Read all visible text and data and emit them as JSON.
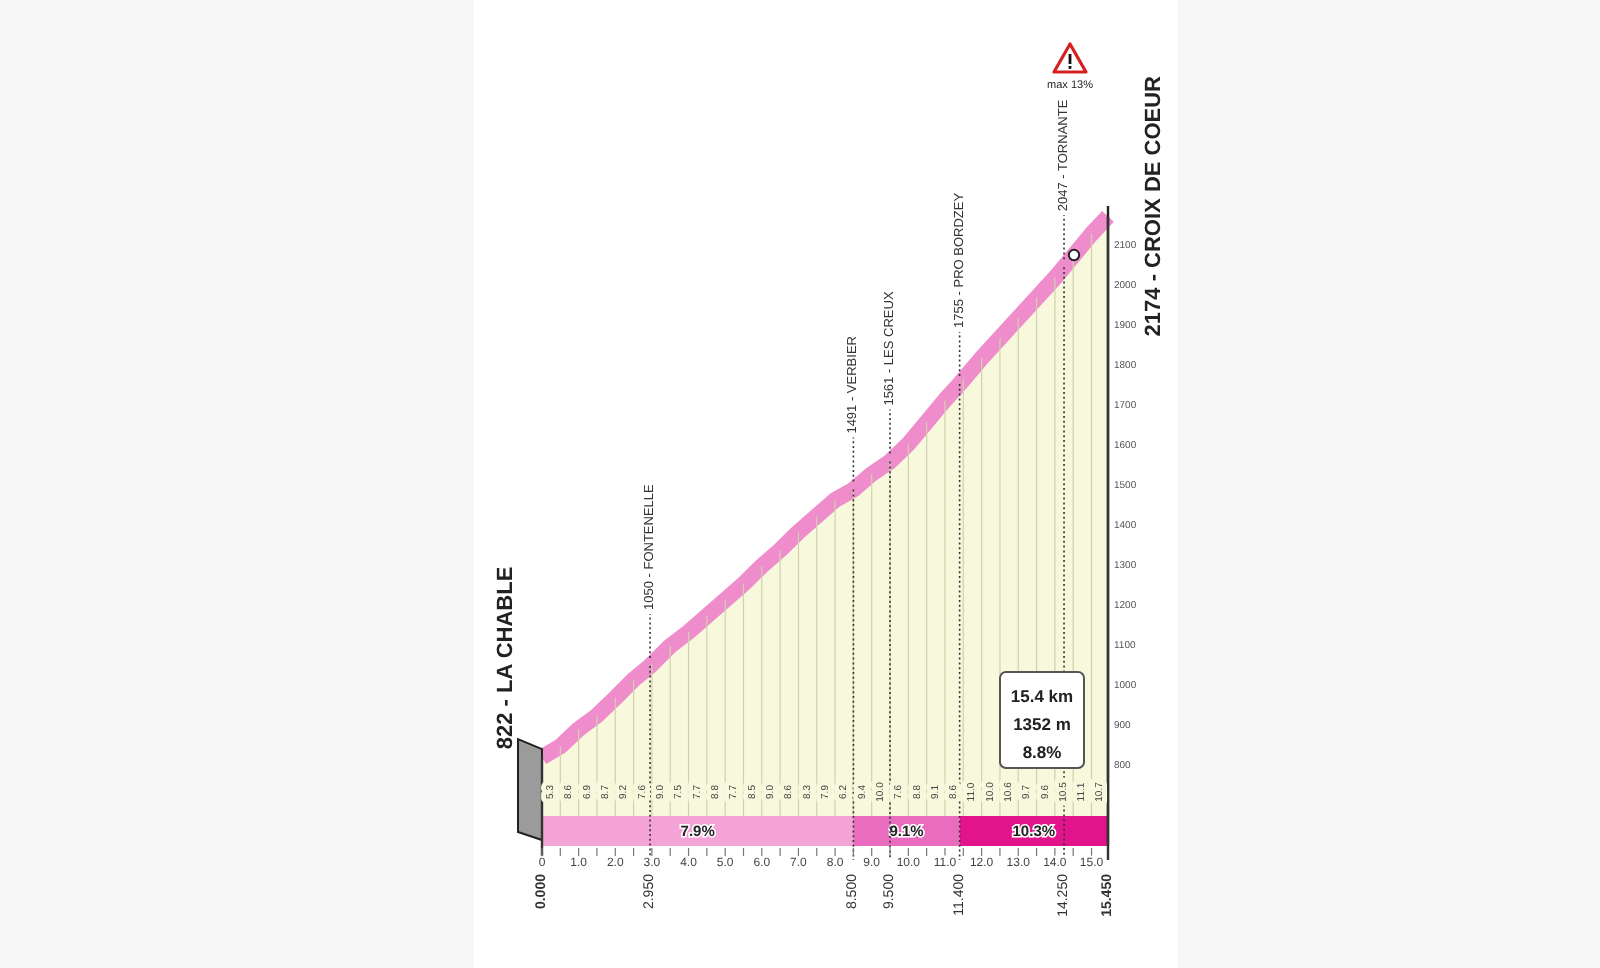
{
  "chart_data": {
    "type": "area",
    "color": "#ef8ccb",
    "x": [
      0,
      0.5,
      1,
      1.5,
      2,
      2.5,
      2.95,
      3.5,
      4,
      4.5,
      5,
      5.5,
      6,
      6.5,
      7,
      7.5,
      8,
      8.5,
      9,
      9.5,
      10,
      10.5,
      11,
      11.4,
      12,
      12.5,
      13,
      13.5,
      14,
      14.25,
      14.5,
      15,
      15.45
    ],
    "values": [
      822,
      849,
      892,
      926,
      970,
      1016,
      1050,
      1100,
      1135,
      1175,
      1215,
      1255,
      1300,
      1340,
      1385,
      1425,
      1465,
      1491,
      1530,
      1561,
      1605,
      1660,
      1715,
      1755,
      1820,
      1870,
      1920,
      1970,
      2020,
      2047,
      2075,
      2130,
      2174
    ],
    "xlim": [
      0,
      15.45
    ],
    "ylim": [
      600,
      2200
    ],
    "xticks": [
      0,
      {
        "value": 0.5,
        "label": null
      },
      {
        "value": 1,
        "label": "1.0"
      },
      {
        "value": 1.5,
        "label": null
      },
      {
        "value": 2,
        "label": "2.0"
      },
      {
        "value": 2.5,
        "label": null
      },
      {
        "value": 3,
        "label": "3.0"
      },
      {
        "value": 3.5,
        "label": null
      },
      {
        "value": 4,
        "label": "4.0"
      },
      {
        "value": 4.5,
        "label": null
      },
      {
        "value": 5,
        "label": "5.0"
      },
      {
        "value": 5.5,
        "label": null
      },
      {
        "value": 6,
        "label": "6.0"
      },
      {
        "value": 6.5,
        "label": null
      },
      {
        "value": 7,
        "label": "7.0"
      },
      {
        "value": 7.5,
        "label": null
      },
      {
        "value": 8,
        "label": "8.0"
      },
      {
        "value": 8.5,
        "label": null
      },
      {
        "value": 9,
        "label": "9.0"
      },
      {
        "value": 9.5,
        "label": null
      },
      {
        "value": 10,
        "label": "10.0"
      },
      {
        "value": 10.5,
        "label": null
      },
      {
        "value": 11,
        "label": "11.0"
      },
      {
        "value": 11.5,
        "label": null
      },
      {
        "value": 12,
        "label": "12.0"
      },
      {
        "value": 12.5,
        "label": null
      },
      {
        "value": 13,
        "label": "13.0"
      },
      {
        "value": 13.5,
        "label": null
      },
      {
        "value": 14,
        "label": "14.0"
      },
      {
        "value": 14.5,
        "label": null
      },
      {
        "value": 15,
        "label": "15.0"
      }
    ],
    "yticks": [
      800,
      900,
      1000,
      1100,
      1200,
      1300,
      1400,
      1500,
      1600,
      1700,
      1800,
      1900,
      2000,
      2100
    ],
    "grid": "x",
    "ref_lines": [
      {
        "axis": "x",
        "value": 0,
        "label": "0.000",
        "line_style": "solid"
      },
      {
        "axis": "x",
        "value": 2.95,
        "label": "2.950",
        "line_style": "dotted"
      },
      {
        "axis": "x",
        "value": 8.5,
        "label": "8.500",
        "line_style": "dotted"
      },
      {
        "axis": "x",
        "value": 9.5,
        "label": "9.500",
        "line_style": "dotted"
      },
      {
        "axis": "x",
        "value": 11.4,
        "label": "11.400",
        "line_style": "dotted"
      },
      {
        "axis": "x",
        "value": 14.25,
        "label": "14.250",
        "line_style": "dotted"
      },
      {
        "axis": "x",
        "value": 15.45,
        "label": "15.450",
        "line_style": "solid"
      }
    ],
    "bands": [
      {
        "axis": "x",
        "from": 0,
        "to": 8.5,
        "label": "7.9%",
        "color": "#f4a3d6"
      },
      {
        "axis": "x",
        "from": 8.5,
        "to": 11.4,
        "label": "9.1%",
        "color": "#ea6cbf"
      },
      {
        "axis": "x",
        "from": 11.4,
        "to": 15.45,
        "label": "10.3%",
        "color": "#e2148c"
      }
    ],
    "annotations": [
      {
        "text": "822 - LA CHABLE",
        "x": 0,
        "y": 822
      },
      {
        "text": "1050 - FONTENELLE",
        "x": 2.95,
        "y": 1050
      },
      {
        "text": "1491 - VERBIER",
        "x": 8.5,
        "y": 1491
      },
      {
        "text": "1561 - LES CREUX",
        "x": 9.5,
        "y": 1561
      },
      {
        "text": "1755 - PRO BORDZEY",
        "x": 11.4,
        "y": 1755
      },
      {
        "text": "2047 - TORNANTE",
        "x": 14.25,
        "y": 2047
      },
      {
        "text": "2174 - CROIX DE COEUR",
        "x": 15.45,
        "y": 2174
      },
      "15.4 km",
      "1352 m",
      "8.8%",
      "max 13%",
      "5.3",
      "8.6",
      "6.9",
      "8.7",
      "9.2",
      "7.6",
      "9.0",
      "7.5",
      "7.7",
      "8.8",
      "7.7",
      "8.5",
      "9.0",
      "8.6",
      "8.3",
      "7.9",
      "6.2",
      "9.4",
      "10.0",
      "7.6",
      "8.8",
      "9.1",
      "8.6",
      "11.0",
      "10.0",
      "10.6",
      "9.7",
      "9.6",
      "10.5",
      "11.1",
      "10.7"
    ]
  }
}
